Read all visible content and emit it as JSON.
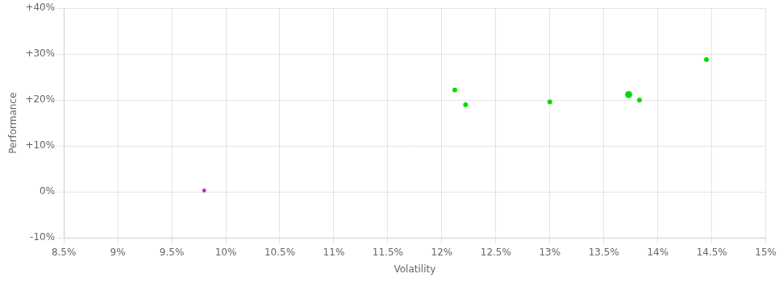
{
  "chart_data": {
    "type": "scatter",
    "xlabel": "Volatility",
    "ylabel": "Performance",
    "xlim": [
      0.085,
      0.15
    ],
    "ylim": [
      -0.1,
      0.4
    ],
    "xticks": [
      {
        "value": 0.085,
        "label": "8.5%"
      },
      {
        "value": 0.09,
        "label": "9%"
      },
      {
        "value": 0.095,
        "label": "9.5%"
      },
      {
        "value": 0.1,
        "label": "10%"
      },
      {
        "value": 0.105,
        "label": "10.5%"
      },
      {
        "value": 0.11,
        "label": "11%"
      },
      {
        "value": 0.115,
        "label": "11.5%"
      },
      {
        "value": 0.12,
        "label": "12%"
      },
      {
        "value": 0.125,
        "label": "12.5%"
      },
      {
        "value": 0.13,
        "label": "13%"
      },
      {
        "value": 0.135,
        "label": "13.5%"
      },
      {
        "value": 0.14,
        "label": "14%"
      },
      {
        "value": 0.145,
        "label": "14.5%"
      },
      {
        "value": 0.15,
        "label": "15%"
      }
    ],
    "yticks": [
      {
        "value": -0.1,
        "label": "-10%"
      },
      {
        "value": 0.0,
        "label": "0%"
      },
      {
        "value": 0.1,
        "label": "+10%"
      },
      {
        "value": 0.2,
        "label": "+20%"
      },
      {
        "value": 0.3,
        "label": "+30%"
      },
      {
        "value": 0.4,
        "label": "+40%"
      }
    ],
    "grid": true,
    "legend": false,
    "series": [
      {
        "color": "#00dd00",
        "x": [
          0.1212,
          0.1222,
          0.13,
          0.1373,
          0.1383,
          0.1445
        ],
        "values": [
          0.222,
          0.19,
          0.196,
          0.212,
          0.2,
          0.288
        ],
        "sizes": [
          18,
          18,
          18,
          40,
          18,
          18
        ]
      },
      {
        "color": "#cc22cc",
        "x": [
          0.098
        ],
        "values": [
          0.003
        ],
        "sizes": [
          12
        ]
      }
    ]
  }
}
